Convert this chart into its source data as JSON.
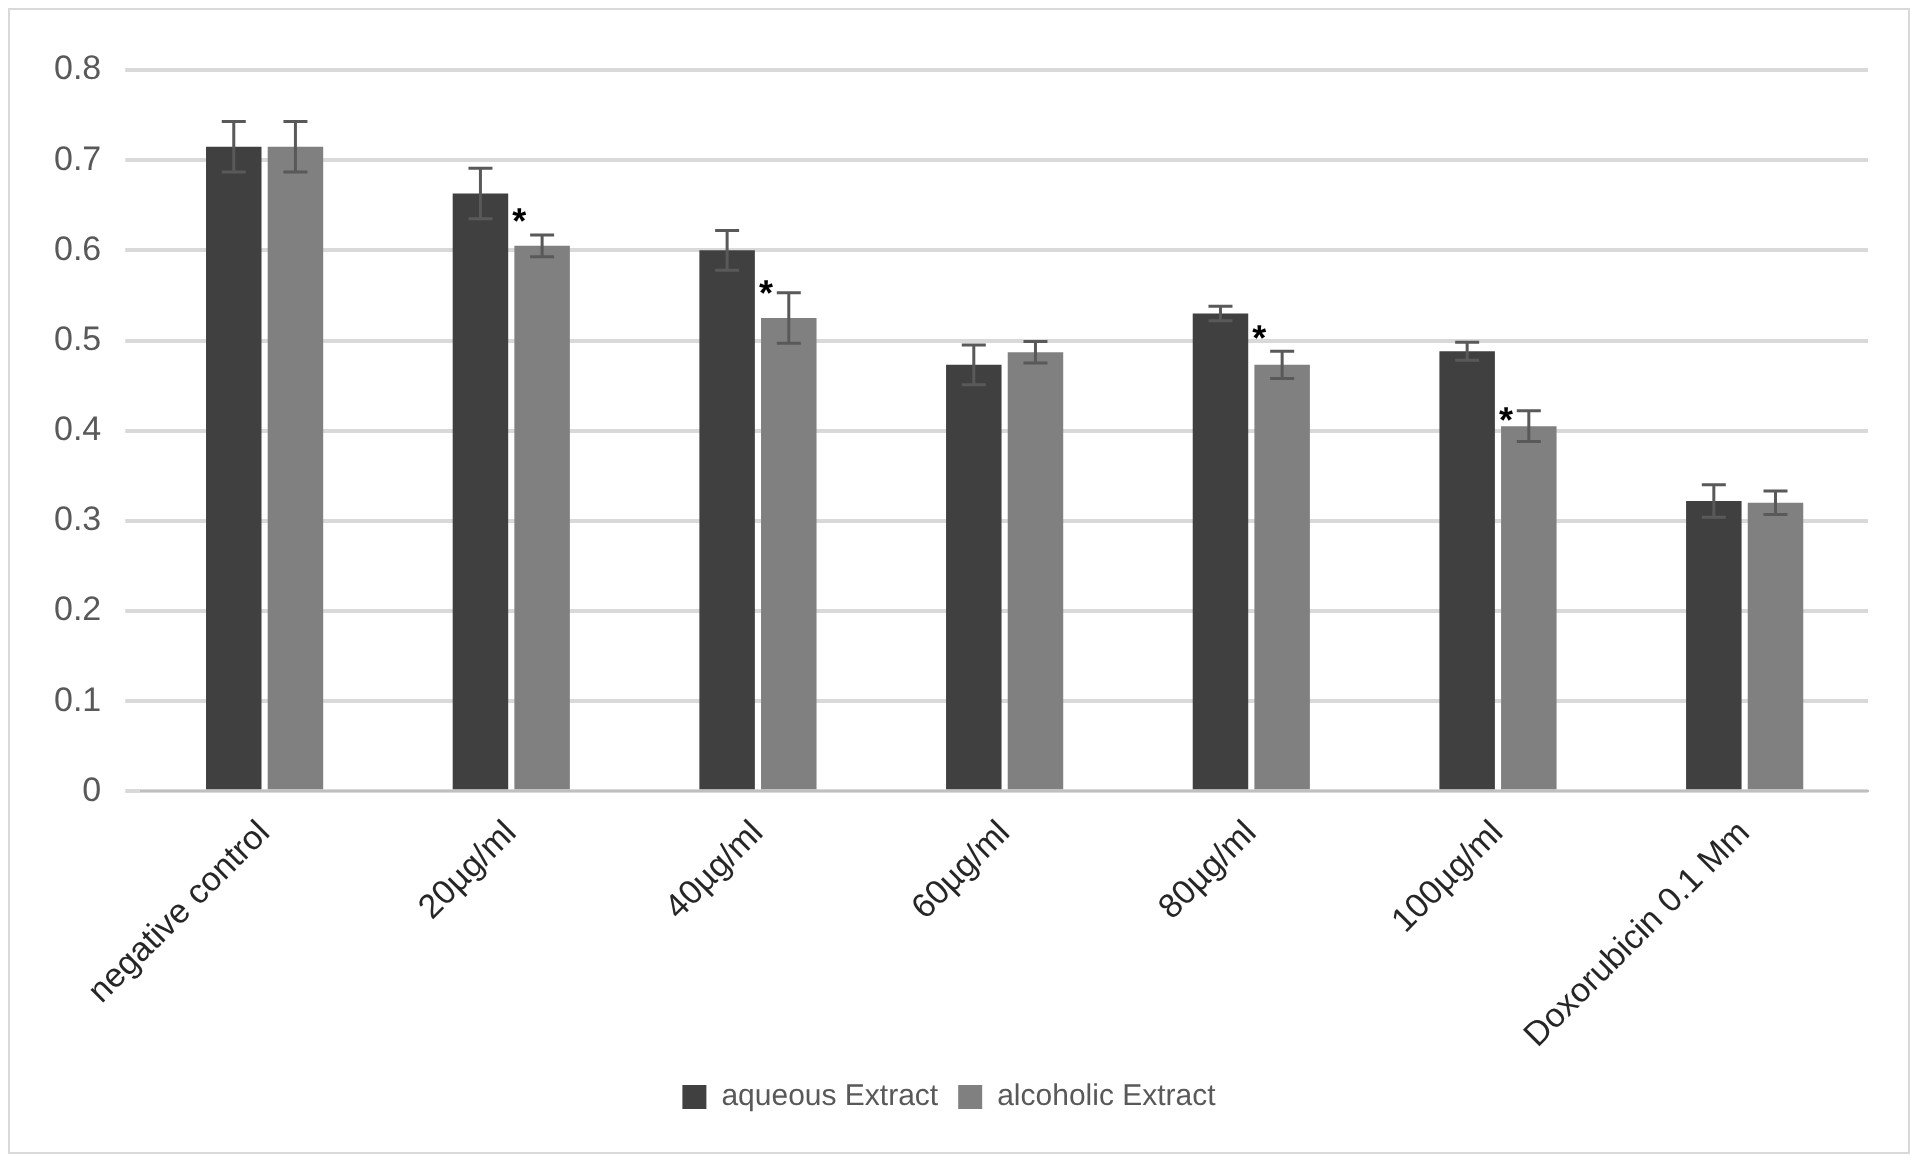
{
  "chart_data": {
    "type": "bar",
    "categories": [
      "negative control",
      "20µg/ml",
      "40µg/ml",
      "60µg/ml",
      "80µg/ml",
      "100µg/ml",
      "Doxorubicin 0.1 Mm"
    ],
    "series": [
      {
        "name": "aqueous Extract",
        "color": "#404040",
        "values": [
          0.715,
          0.663,
          0.6,
          0.473,
          0.53,
          0.488,
          0.322
        ],
        "errors": [
          0.028,
          0.028,
          0.022,
          0.022,
          0.008,
          0.01,
          0.018
        ]
      },
      {
        "name": "alcoholic Extract",
        "color": "#808080",
        "values": [
          0.715,
          0.605,
          0.525,
          0.487,
          0.473,
          0.405,
          0.32
        ],
        "errors": [
          0.028,
          0.012,
          0.028,
          0.012,
          0.015,
          0.017,
          0.013
        ]
      }
    ],
    "ylim": [
      0,
      0.8
    ],
    "yticks": [
      0,
      0.1,
      0.2,
      0.3,
      0.4,
      0.5,
      0.6,
      0.7,
      0.8
    ],
    "annotations": [
      {
        "text": "*",
        "x": "20µg/ml",
        "y": 0.63
      },
      {
        "text": "*",
        "x": "40µg/ml",
        "y": 0.55
      },
      {
        "text": "*",
        "x": "80µg/ml",
        "y": 0.5
      },
      {
        "text": "*",
        "x": "100µg/ml",
        "y": 0.41
      }
    ],
    "grid": "y",
    "legend": "bottom"
  }
}
